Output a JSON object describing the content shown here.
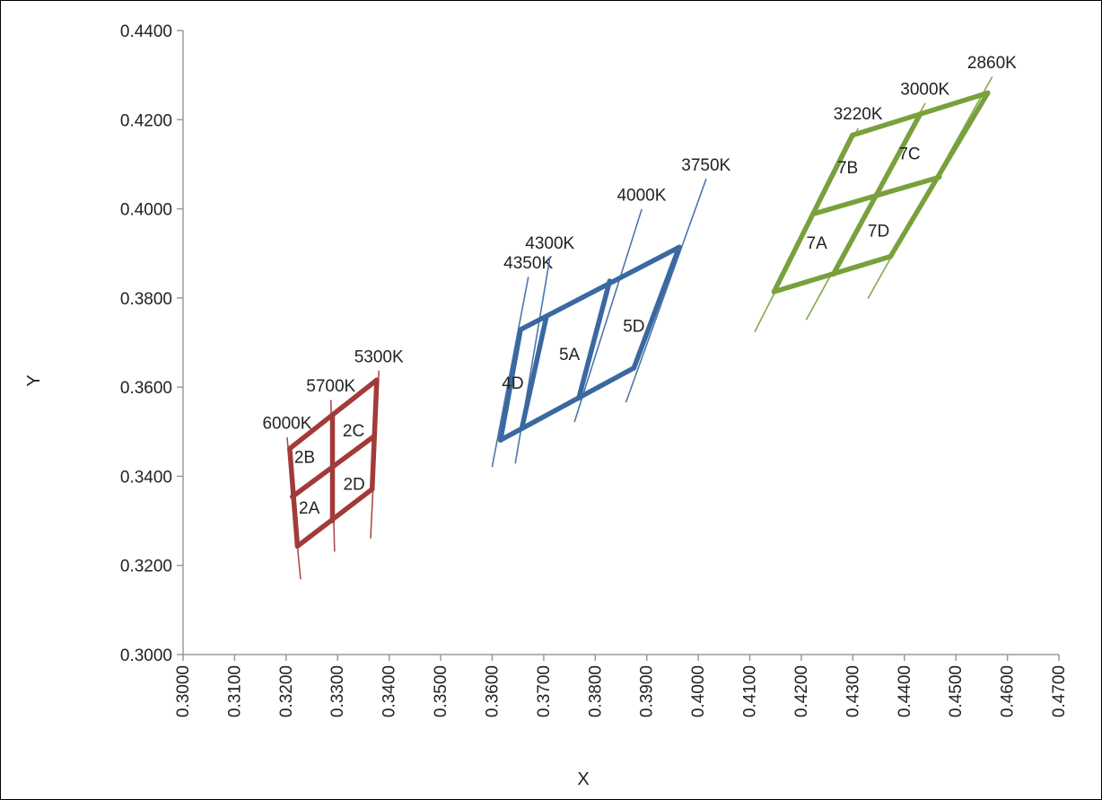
{
  "chart_data": {
    "type": "scatter",
    "title": "",
    "xlabel": "X",
    "ylabel": "Y",
    "xlim": [
      0.3,
      0.47
    ],
    "ylim": [
      0.3,
      0.44
    ],
    "x_ticks": [
      "0.3000",
      "0.3100",
      "0.3200",
      "0.3300",
      "0.3400",
      "0.3500",
      "0.3600",
      "0.3700",
      "0.3800",
      "0.3900",
      "0.4000",
      "0.4100",
      "0.4200",
      "0.4300",
      "0.4400",
      "0.4500",
      "0.4600",
      "0.4700"
    ],
    "y_ticks": [
      "0.3000",
      "0.3200",
      "0.3400",
      "0.3600",
      "0.3800",
      "0.4000",
      "0.4200",
      "0.4400"
    ],
    "grid": false,
    "legend": "none",
    "groups": [
      {
        "color": "#a33a3a",
        "bins": [
          {
            "label": "2A",
            "x": 0.3245,
            "y": 0.333
          },
          {
            "label": "2B",
            "x": 0.3236,
            "y": 0.3444
          },
          {
            "label": "2C",
            "x": 0.3331,
            "y": 0.3504
          },
          {
            "label": "2D",
            "x": 0.3332,
            "y": 0.3384
          }
        ],
        "isotherms": [
          {
            "label": "6000K",
            "line": [
              [
                0.3202,
                0.3486
              ],
              [
                0.3228,
                0.317
              ]
            ]
          },
          {
            "label": "5700K",
            "line": [
              [
                0.3287,
                0.357
              ],
              [
                0.3294,
                0.3232
              ]
            ]
          },
          {
            "label": "5300K",
            "line": [
              [
                0.338,
                0.3636
              ],
              [
                0.3364,
                0.3262
              ]
            ]
          }
        ],
        "grid_lines": [
          [
            [
              0.3207,
              0.3462
            ],
            [
              0.3376,
              0.3616
            ]
          ],
          [
            [
              0.3212,
              0.3354
            ],
            [
              0.3371,
              0.349
            ]
          ],
          [
            [
              0.3222,
              0.3243
            ],
            [
              0.3367,
              0.3371
            ]
          ],
          [
            [
              0.3207,
              0.3462
            ],
            [
              0.3222,
              0.3243
            ]
          ],
          [
            [
              0.329,
              0.3538
            ],
            [
              0.329,
              0.33
            ]
          ],
          [
            [
              0.3376,
              0.3616
            ],
            [
              0.3367,
              0.3371
            ]
          ]
        ]
      },
      {
        "color": "#3a68a0",
        "bins": [
          {
            "label": "4D",
            "x": 0.364,
            "y": 0.361
          },
          {
            "label": "5A",
            "x": 0.375,
            "y": 0.3675
          },
          {
            "label": "5D",
            "x": 0.3875,
            "y": 0.3738
          }
        ],
        "isotherms": [
          {
            "label": "4350K",
            "line": [
              [
                0.367,
                0.3846
              ],
              [
                0.36,
                0.3422
              ]
            ]
          },
          {
            "label": "4300K",
            "line": [
              [
                0.3712,
                0.389
              ],
              [
                0.3645,
                0.343
              ]
            ]
          },
          {
            "label": "4000K",
            "line": [
              [
                0.389,
                0.3998
              ],
              [
                0.376,
                0.3523
              ]
            ]
          },
          {
            "label": "3750K",
            "line": [
              [
                0.4015,
                0.4066
              ],
              [
                0.386,
                0.3567
              ]
            ]
          }
        ],
        "grid_lines": [
          [
            [
              0.3655,
              0.3729
            ],
            [
              0.3963,
              0.3914
            ]
          ],
          [
            [
              0.3616,
              0.3481
            ],
            [
              0.3875,
              0.3643
            ]
          ],
          [
            [
              0.3655,
              0.3729
            ],
            [
              0.3616,
              0.3481
            ]
          ],
          [
            [
              0.3705,
              0.3757
            ],
            [
              0.3658,
              0.351
            ]
          ],
          [
            [
              0.3828,
              0.3838
            ],
            [
              0.3768,
              0.3575
            ]
          ],
          [
            [
              0.3963,
              0.3914
            ],
            [
              0.3875,
              0.3643
            ]
          ]
        ]
      },
      {
        "color": "#78a03c",
        "bins": [
          {
            "label": "7A",
            "x": 0.423,
            "y": 0.3925
          },
          {
            "label": "7B",
            "x": 0.429,
            "y": 0.4094
          },
          {
            "label": "7C",
            "x": 0.441,
            "y": 0.4125
          },
          {
            "label": "7D",
            "x": 0.435,
            "y": 0.3952
          }
        ],
        "isotherms": [
          {
            "label": "3220K",
            "line": [
              [
                0.431,
                0.418
              ],
              [
                0.411,
                0.3725
              ]
            ]
          },
          {
            "label": "3000K",
            "line": [
              [
                0.444,
                0.4236
              ],
              [
                0.421,
                0.3752
              ]
            ]
          },
          {
            "label": "2860K",
            "line": [
              [
                0.457,
                0.4295
              ],
              [
                0.433,
                0.38
              ]
            ]
          }
        ],
        "grid_lines": [
          [
            [
              0.4299,
              0.4165
            ],
            [
              0.4562,
              0.426
            ]
          ],
          [
            [
              0.4222,
              0.3988
            ],
            [
              0.4468,
              0.4071
            ]
          ],
          [
            [
              0.4147,
              0.3814
            ],
            [
              0.4373,
              0.3893
            ]
          ],
          [
            [
              0.4299,
              0.4165
            ],
            [
              0.4147,
              0.3814
            ]
          ],
          [
            [
              0.4431,
              0.4213
            ],
            [
              0.4262,
              0.3853
            ]
          ],
          [
            [
              0.4562,
              0.426
            ],
            [
              0.4373,
              0.3893
            ]
          ]
        ]
      }
    ]
  }
}
